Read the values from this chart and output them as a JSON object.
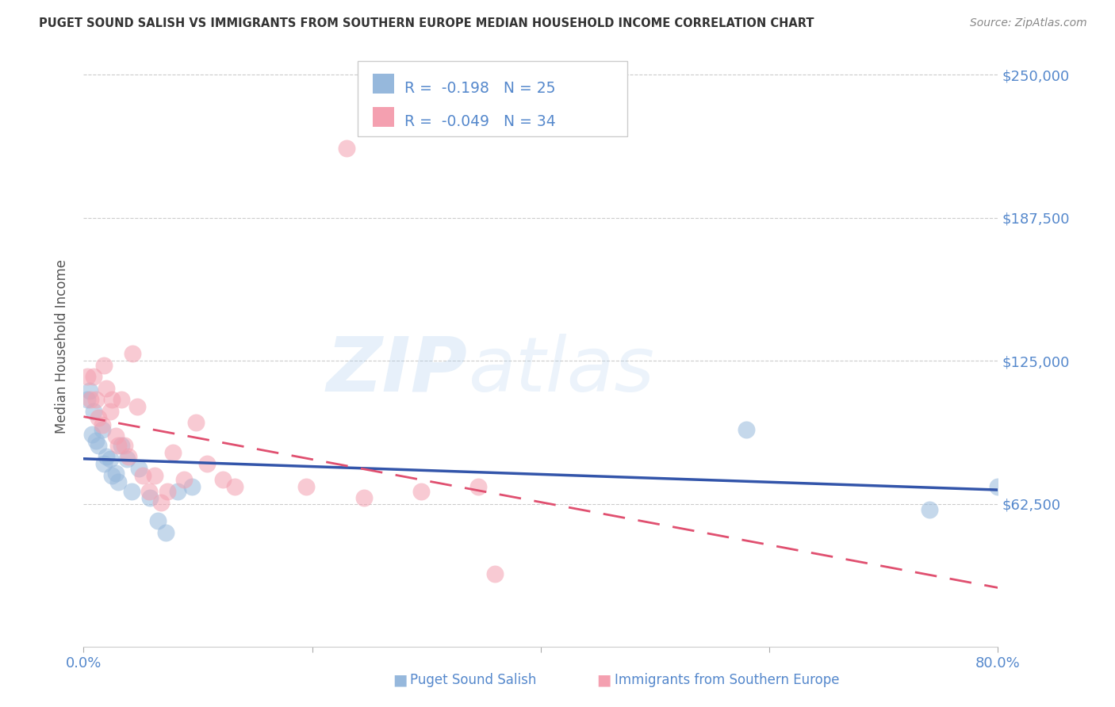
{
  "title": "PUGET SOUND SALISH VS IMMIGRANTS FROM SOUTHERN EUROPE MEDIAN HOUSEHOLD INCOME CORRELATION CHART",
  "source": "Source: ZipAtlas.com",
  "ylabel": "Median Household Income",
  "watermark_zip": "ZIP",
  "watermark_atlas": "atlas",
  "xlim": [
    0.0,
    0.8
  ],
  "ylim": [
    0,
    262500
  ],
  "yticks": [
    62500,
    125000,
    187500,
    250000
  ],
  "ytick_labels": [
    "$62,500",
    "$125,000",
    "$187,500",
    "$250,000"
  ],
  "xticks": [
    0.0,
    0.2,
    0.4,
    0.6,
    0.8
  ],
  "xtick_labels": [
    "0.0%",
    "",
    "",
    "",
    "80.0%"
  ],
  "blue_color": "#96B8DC",
  "pink_color": "#F4A0B0",
  "blue_line_color": "#3355AA",
  "pink_line_color": "#E05070",
  "blue_x": [
    0.003,
    0.005,
    0.007,
    0.009,
    0.011,
    0.013,
    0.016,
    0.018,
    0.02,
    0.023,
    0.025,
    0.028,
    0.03,
    0.033,
    0.038,
    0.042,
    0.048,
    0.058,
    0.065,
    0.072,
    0.082,
    0.095,
    0.58,
    0.74,
    0.8
  ],
  "blue_y": [
    108000,
    112000,
    93000,
    103000,
    90000,
    88000,
    95000,
    80000,
    83000,
    82000,
    75000,
    76000,
    72000,
    88000,
    82000,
    68000,
    78000,
    65000,
    55000,
    50000,
    68000,
    70000,
    95000,
    60000,
    70000
  ],
  "pink_x": [
    0.003,
    0.006,
    0.009,
    0.011,
    0.013,
    0.016,
    0.018,
    0.02,
    0.023,
    0.025,
    0.028,
    0.03,
    0.033,
    0.036,
    0.039,
    0.043,
    0.047,
    0.052,
    0.057,
    0.062,
    0.068,
    0.073,
    0.078,
    0.088,
    0.098,
    0.108,
    0.122,
    0.132,
    0.195,
    0.245,
    0.295,
    0.345,
    0.23,
    0.36
  ],
  "pink_y": [
    118000,
    108000,
    118000,
    108000,
    100000,
    97000,
    123000,
    113000,
    103000,
    108000,
    92000,
    88000,
    108000,
    88000,
    83000,
    128000,
    105000,
    75000,
    68000,
    75000,
    63000,
    68000,
    85000,
    73000,
    98000,
    80000,
    73000,
    70000,
    70000,
    65000,
    68000,
    70000,
    218000,
    32000
  ],
  "legend_blue_label_r": "R = ",
  "legend_blue_r_val": "-0.198",
  "legend_blue_n": "N = 25",
  "legend_pink_label_r": "R = ",
  "legend_pink_r_val": "-0.049",
  "legend_pink_n": "N = 34",
  "bottom_label_blue": "Puget Sound Salish",
  "bottom_label_pink": "Immigrants from Southern Europe",
  "background_color": "#FFFFFF",
  "grid_color": "#CCCCCC",
  "title_color": "#333333",
  "tick_color": "#5588CC",
  "legend_text_color": "#5588CC",
  "source_color": "#888888"
}
